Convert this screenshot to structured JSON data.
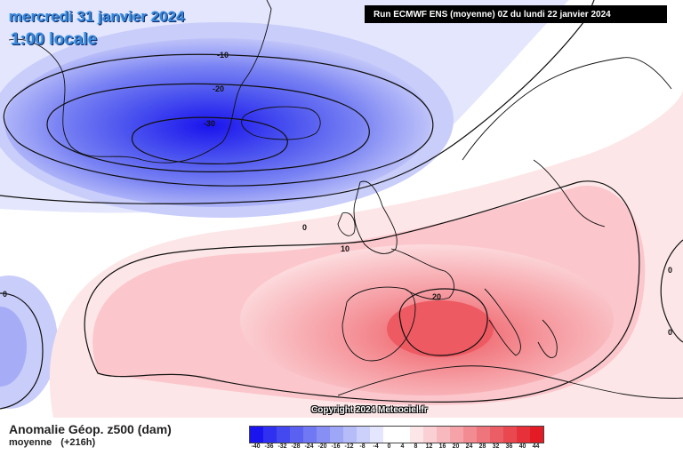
{
  "header": {
    "date": "mercredi 31 janvier 2024",
    "time": "1:00 locale",
    "run_info": "Run ECMWF ENS (moyenne) 0Z du lundi 22 janvier 2024"
  },
  "map": {
    "contour_labels": [
      "-10",
      "-20",
      "-30",
      "0",
      "10",
      "20",
      "0",
      "0",
      "0"
    ],
    "copyright": "Copyright 2024 Meteociel.fr"
  },
  "footer": {
    "title": "Anomalie Géop. z500 (dam)",
    "subtitle_a": "moyenne",
    "subtitle_b": "(+216h)"
  },
  "legend": {
    "labels": [
      "-40",
      "-36",
      "-32",
      "-28",
      "-24",
      "-20",
      "-16",
      "-12",
      "-8",
      "-4",
      "0",
      "4",
      "8",
      "12",
      "16",
      "20",
      "24",
      "28",
      "32",
      "36",
      "40",
      "44"
    ],
    "colors": [
      "#1a14ee",
      "#2f30f0",
      "#4349ef",
      "#5a61f1",
      "#7078f3",
      "#878ff5",
      "#9ea6f7",
      "#b5bcf8",
      "#cbd1fa",
      "#e3e6fc",
      "#ffffff",
      "#ffffff",
      "#fde6e8",
      "#fbd0d4",
      "#f8b9be",
      "#f5a2a8",
      "#f28c92",
      "#ef757c",
      "#ec5e66",
      "#e94850",
      "#e6313a",
      "#e31b24"
    ]
  }
}
